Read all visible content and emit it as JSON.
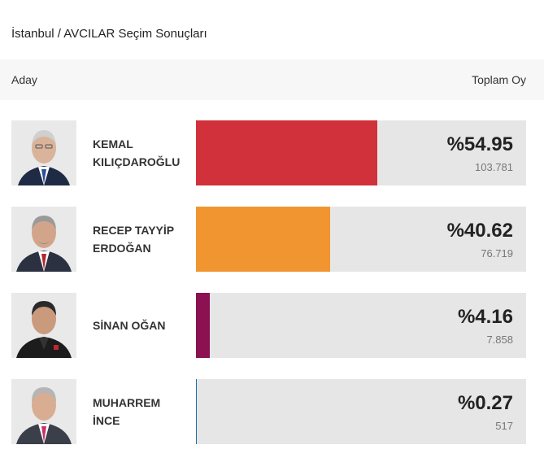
{
  "title": "İstanbul / AVCILAR Seçim Sonuçları",
  "header": {
    "left": "Aday",
    "right": "Toplam Oy"
  },
  "candidates": [
    {
      "name": "KEMAL\nKILIÇDAROĞLU",
      "percent_label": "%54.95",
      "percent": 54.95,
      "votes": "103.781",
      "color": "#d0313a"
    },
    {
      "name": "RECEP TAYYİP\nERDOĞAN",
      "percent_label": "%40.62",
      "percent": 40.62,
      "votes": "76.719",
      "color": "#f0952f"
    },
    {
      "name": "SİNAN OĞAN",
      "percent_label": "%4.16",
      "percent": 4.16,
      "votes": "7.858",
      "color": "#8b1152"
    },
    {
      "name": "MUHARREM\nİNCE",
      "percent_label": "%0.27",
      "percent": 0.27,
      "votes": "517",
      "color": "#1a6fb0"
    }
  ]
}
